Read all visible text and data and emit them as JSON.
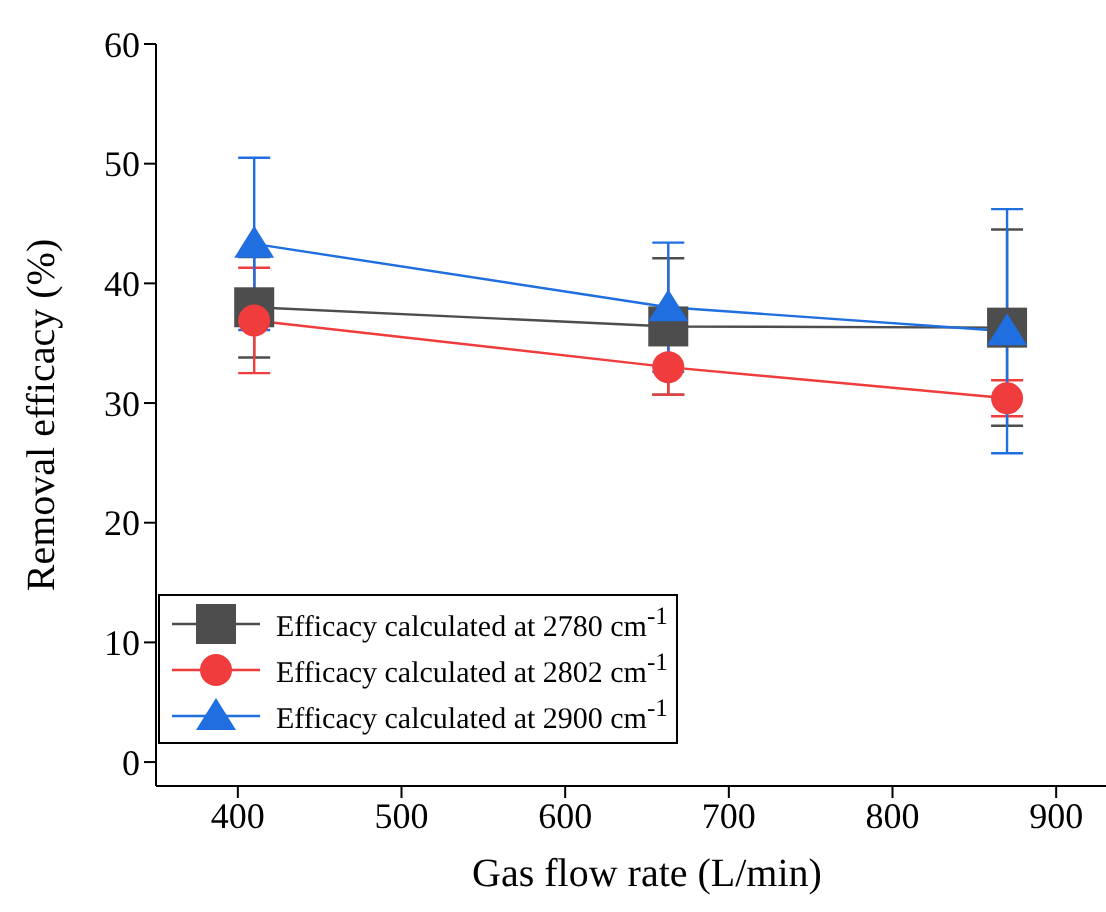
{
  "chart_data": {
    "type": "line",
    "xlabel": "Gas flow rate (L/min)",
    "ylabel": "Removal efficacy (%)",
    "x": [
      410,
      663,
      870
    ],
    "series": [
      {
        "name": "Efficacy calculated at 2780 cm$^{-1}$",
        "color": "#4d4d4d",
        "marker": "square",
        "values": [
          38.0,
          36.4,
          36.3
        ],
        "errors": [
          4.2,
          5.7,
          8.2
        ]
      },
      {
        "name": "Efficacy calculated at 2802 cm$^{-1}$",
        "color": "#f03c3c",
        "marker": "circle",
        "values": [
          36.9,
          33.0,
          30.4
        ],
        "errors": [
          4.4,
          2.3,
          1.5
        ]
      },
      {
        "name": "Efficacy calculated at 2900 cm$^{-1}$",
        "color": "#1f6fe0",
        "marker": "triangle",
        "values": [
          43.3,
          38.0,
          36.0
        ],
        "errors": [
          7.2,
          5.4,
          10.2
        ]
      }
    ],
    "xlim": [
      350,
      950
    ],
    "xticks": [
      400,
      500,
      600,
      700,
      800,
      900
    ],
    "ylim": [
      -2,
      60
    ],
    "yticks": [
      0,
      10,
      20,
      30,
      40,
      50,
      60
    ],
    "grid": false,
    "legend": "bottom left",
    "line_style": "solid"
  }
}
